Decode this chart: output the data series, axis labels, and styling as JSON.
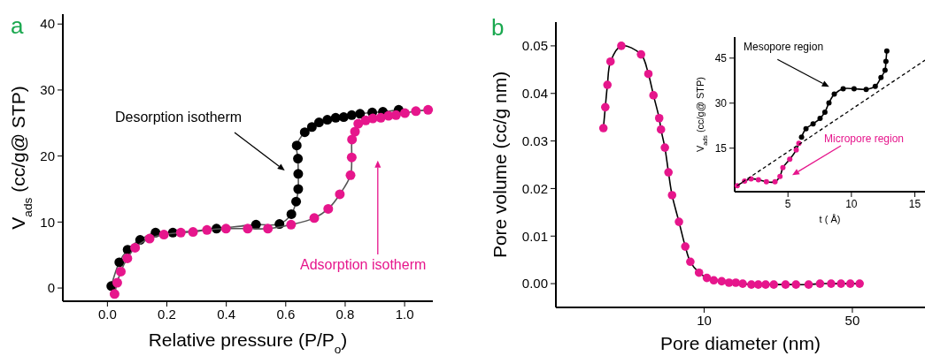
{
  "chart_data": [
    {
      "type": "line",
      "title": "a",
      "xlabel": "Relative pressure (P/P$_{o}$)",
      "ylabel": "V$_{ads}$ (cc/g@ STP)",
      "xlim": [
        -0.15,
        1.095
      ],
      "ylim": [
        -2,
        41.5
      ],
      "xticks": [
        {
          "value": 0,
          "label": "0.0"
        },
        {
          "value": 0.2,
          "label": "0.2"
        },
        {
          "value": 0.4,
          "label": "0.4"
        },
        {
          "value": 0.6,
          "label": "0.6"
        },
        {
          "value": 0.8,
          "label": "0.8"
        },
        {
          "value": 1,
          "label": "1.0"
        }
      ],
      "yticks": [
        0,
        10,
        20,
        30,
        40
      ],
      "marker": "circle",
      "line_style": "solid",
      "series": [
        {
          "color": "#000000",
          "x": [
            0.013,
            0.04,
            0.068,
            0.11,
            0.162,
            0.22,
            0.367,
            0.5,
            0.579,
            0.619,
            0.635,
            0.642,
            0.642,
            0.641,
            0.637,
            0.664,
            0.688,
            0.712,
            0.74,
            0.768,
            0.795,
            0.822,
            0.85,
            0.891,
            0.927,
            0.98
          ],
          "values": [
            0.3,
            3.9,
            5.8,
            7.3,
            8.4,
            8.4,
            9.0,
            9.6,
            9.7,
            11.2,
            13.1,
            15.0,
            17.3,
            19.6,
            21.6,
            23.6,
            24.4,
            25.1,
            25.5,
            25.8,
            25.9,
            26.2,
            26.4,
            26.6,
            26.7,
            27.0
          ]
        },
        {
          "color": "#e6168c",
          "x": [
            0.024,
            0.033,
            0.045,
            0.067,
            0.093,
            0.142,
            0.19,
            0.247,
            0.288,
            0.335,
            0.399,
            0.472,
            0.54,
            0.618,
            0.696,
            0.743,
            0.782,
            0.818,
            0.822,
            0.823,
            0.833,
            0.844,
            0.869,
            0.893,
            0.92,
            0.946,
            0.971,
            1.001,
            1.038,
            1.079
          ],
          "values": [
            -0.9,
            0.8,
            2.5,
            4.5,
            6.1,
            7.5,
            8.1,
            8.4,
            8.5,
            8.8,
            9.0,
            9.0,
            9.0,
            9.6,
            10.6,
            12.0,
            14.2,
            17.1,
            19.8,
            22.5,
            23.7,
            24.9,
            25.4,
            25.7,
            25.8,
            26.1,
            26.2,
            26.5,
            26.8,
            27.0
          ]
        }
      ],
      "annotations": [
        "Desorption isotherm",
        "Adsorption isotherm"
      ]
    },
    {
      "type": "line",
      "title": "b",
      "xlabel": "Pore diameter (nm)",
      "ylabel": "Pore volume (cc/g nm)",
      "log": "x",
      "xlim": [
        2,
        110
      ],
      "ylim": [
        -0.005,
        0.055
      ],
      "xticks": [
        10,
        50
      ],
      "yticks": [
        {
          "value": 0,
          "label": "0.00"
        },
        {
          "value": 0.01,
          "label": "0.01"
        },
        {
          "value": 0.02,
          "label": "0.02"
        },
        {
          "value": 0.03,
          "label": "0.03"
        },
        {
          "value": 0.04,
          "label": "0.04"
        },
        {
          "value": 0.05,
          "label": "0.05"
        }
      ],
      "marker": "circle",
      "line_style": "solid",
      "series": [
        {
          "color": "#e6168c",
          "x": [
            3.35,
            3.42,
            3.5,
            3.62,
            4.07,
            5.04,
            5.46,
            5.77,
            6.14,
            6.26,
            6.53,
            6.79,
            7.06,
            7.61,
            8.15,
            8.61,
            9.46,
            10.3,
            11.1,
            12.1,
            13.1,
            14.1,
            15.2,
            16.7,
            18.0,
            19.5,
            21.3,
            24.2,
            27.1,
            31.1,
            35.2,
            39.7,
            44.2,
            48.9,
            54.1
          ],
          "values": [
            0.0327,
            0.0371,
            0.0418,
            0.0467,
            0.05,
            0.0482,
            0.0441,
            0.0396,
            0.0348,
            0.0324,
            0.0286,
            0.0234,
            0.0186,
            0.013,
            0.0078,
            0.0046,
            0.0023,
            0.0012,
            0.0007,
            0.0005,
            0.0002,
            0.0002,
            0.0,
            -0.0002,
            -0.0002,
            -0.0002,
            -0.0002,
            -0.0002,
            -0.0002,
            -0.0002,
            0.0,
            0.0,
            0.0,
            0.0,
            0.0
          ]
        }
      ]
    },
    {
      "type": "line",
      "xlabel": "t ( Å)",
      "ylabel": "V$_{ads}$ (cc/g@ STP)",
      "xlim": [
        0.8,
        15.8
      ],
      "ylim": [
        0.5,
        52
      ],
      "xticks": [
        5,
        10,
        15
      ],
      "yticks": [
        15,
        30,
        45
      ],
      "marker": "circle",
      "line_style": "solid",
      "series": [
        {
          "color": "#e6168c",
          "x": [
            1.0,
            1.58,
            2.09,
            2.67,
            3.3,
            3.98,
            4.37,
            4.6,
            5.14,
            5.65,
            5.86
          ],
          "values": [
            2.5,
            4.0,
            4.8,
            4.5,
            3.8,
            3.8,
            5.6,
            8.5,
            11.3,
            14.4,
            16.6
          ]
        },
        {
          "color": "#000000",
          "x": [
            6.07,
            6.42,
            6.98,
            7.53,
            7.91,
            8.23,
            8.65,
            9.35,
            10.21,
            11.16,
            11.88,
            12.33,
            12.65,
            12.72,
            12.79
          ],
          "values": [
            18.7,
            21.5,
            23.1,
            24.9,
            27.0,
            30.1,
            33.0,
            34.8,
            34.8,
            34.6,
            35.6,
            38.5,
            41.0,
            43.9,
            47.4
          ]
        },
        {
          "type": "line",
          "color": "#000000",
          "marker": "none",
          "line_style": "dashed",
          "x": [
            1.0,
            15.8
          ],
          "values": [
            2.5,
            44.3
          ]
        }
      ],
      "annotations": [
        "Mesopore region",
        "Micropore region"
      ]
    }
  ]
}
